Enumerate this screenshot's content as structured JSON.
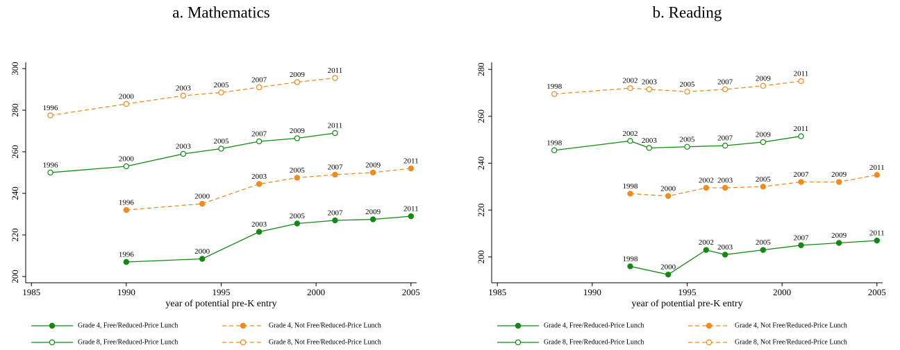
{
  "chart_data": [
    {
      "type": "line",
      "title": "a. Mathematics",
      "xlabel": "year of potential pre-K entry",
      "xlim": [
        1984.7,
        2005.3
      ],
      "xticks": [
        1985,
        1990,
        1995,
        2000,
        2005
      ],
      "ylim": [
        197,
        303
      ],
      "yticks": [
        200,
        220,
        240,
        260,
        280,
        300
      ],
      "series": [
        {
          "name": "Grade 4, Free/Reduced-Price Lunch",
          "color": "#118a11",
          "filled": true,
          "dashed": false,
          "x": [
            1990,
            1994,
            1997,
            1999,
            2001,
            2003,
            2005
          ],
          "values": [
            207,
            208.5,
            221.5,
            225.5,
            227,
            227.5,
            229
          ],
          "labels": [
            "1996",
            "2000",
            "2003",
            "2005",
            "2007",
            "2009",
            "2011"
          ]
        },
        {
          "name": "Grade 8, Free/Reduced-Price Lunch",
          "color": "#118a11",
          "filled": false,
          "dashed": false,
          "x": [
            1986,
            1990,
            1993,
            1995,
            1997,
            1999,
            2001
          ],
          "values": [
            250,
            253,
            259,
            261.5,
            265,
            266.5,
            269
          ],
          "labels": [
            "1996",
            "2000",
            "2003",
            "2005",
            "2007",
            "2009",
            "2011"
          ]
        },
        {
          "name": "Grade 4, Not Free/Reduced-Price Lunch",
          "color": "#f28a1e",
          "filled": true,
          "dashed": true,
          "x": [
            1990,
            1994,
            1997,
            1999,
            2001,
            2003,
            2005
          ],
          "values": [
            232,
            235,
            244.5,
            247.5,
            249,
            250,
            252
          ],
          "labels": [
            "1996",
            "2000",
            "2003",
            "2005",
            "2007",
            "2009",
            "2011"
          ]
        },
        {
          "name": "Grade 8, Not Free/Reduced-Price Lunch",
          "color": "#f28a1e",
          "filled": false,
          "dashed": true,
          "x": [
            1986,
            1990,
            1993,
            1995,
            1997,
            1999,
            2001
          ],
          "values": [
            277.5,
            283,
            287,
            288.5,
            291,
            293.5,
            295.5
          ],
          "labels": [
            "1996",
            "2000",
            "2003",
            "2005",
            "2007",
            "2009",
            "2011"
          ]
        }
      ]
    },
    {
      "type": "line",
      "title": "b. Reading",
      "xlabel": "year of potential pre-K entry",
      "xlim": [
        1984.7,
        2005.3
      ],
      "xticks": [
        1985,
        1990,
        1995,
        2000,
        2005
      ],
      "ylim": [
        189,
        283
      ],
      "yticks": [
        200,
        220,
        240,
        260,
        280
      ],
      "series": [
        {
          "name": "Grade 4, Free/Reduced-Price Lunch",
          "color": "#118a11",
          "filled": true,
          "dashed": false,
          "x": [
            1992,
            1994,
            1996,
            1997,
            1999,
            2001,
            2003,
            2005
          ],
          "values": [
            196,
            192.5,
            203,
            201,
            203,
            205,
            206,
            207
          ],
          "labels": [
            "1998",
            "2000",
            "2002",
            "2003",
            "2005",
            "2007",
            "2009",
            "2011"
          ]
        },
        {
          "name": "Grade 8, Free/Reduced-Price Lunch",
          "color": "#118a11",
          "filled": false,
          "dashed": false,
          "x": [
            1988,
            1992,
            1993,
            1995,
            1997,
            1999,
            2001
          ],
          "values": [
            245.5,
            249.5,
            246.5,
            247,
            247.5,
            249,
            251.5
          ],
          "labels": [
            "1998",
            "2002",
            "2003",
            "2005",
            "2007",
            "2009",
            "2011"
          ]
        },
        {
          "name": "Grade 4, Not Free/Reduced-Price Lunch",
          "color": "#f28a1e",
          "filled": true,
          "dashed": true,
          "x": [
            1992,
            1994,
            1996,
            1997,
            1999,
            2001,
            2003,
            2005
          ],
          "values": [
            227,
            226,
            229.5,
            229.5,
            230,
            232,
            232,
            235
          ],
          "labels": [
            "1998",
            "2000",
            "2002",
            "2003",
            "2005",
            "2007",
            "2009",
            "2011"
          ]
        },
        {
          "name": "Grade 8, Not Free/Reduced-Price Lunch",
          "color": "#f28a1e",
          "filled": false,
          "dashed": true,
          "x": [
            1988,
            1992,
            1993,
            1995,
            1997,
            1999,
            2001
          ],
          "values": [
            269.5,
            272,
            271.5,
            270.5,
            271.5,
            273,
            275
          ],
          "labels": [
            "1998",
            "2002",
            "2003",
            "2005",
            "2007",
            "2009",
            "2011"
          ]
        }
      ]
    }
  ]
}
